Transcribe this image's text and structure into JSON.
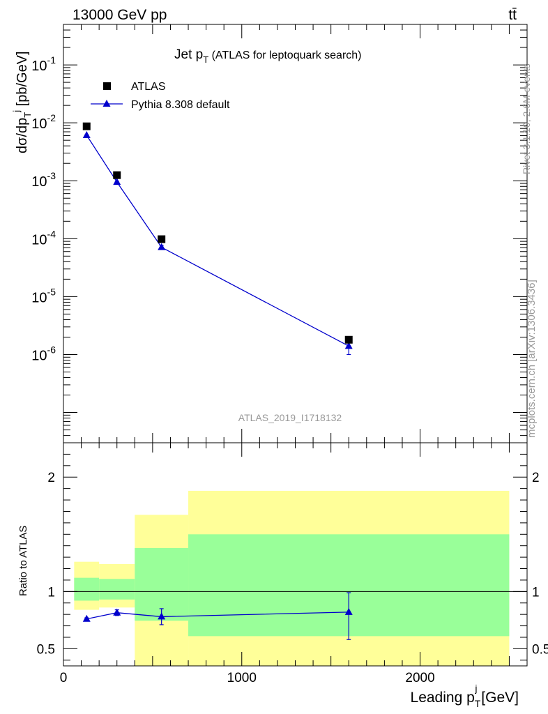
{
  "header": {
    "left_label": "13000 GeV pp",
    "right_label": "tt̄"
  },
  "side_labels": {
    "rivet": "Rivet 3.1.10,  2.6M events",
    "mcplots": "mcplots.cern.ch [arXiv:1306.3436]"
  },
  "chart_data": {
    "type": "scatter",
    "title": "Jet pT (ATLAS for leptoquark search)",
    "title_main": "Jet p",
    "title_sub": "T",
    "title_rest": " (ATLAS for leptoquark search)",
    "watermark": "ATLAS_2019_I1718132",
    "xlabel": "Leading pTj [GeV]",
    "xlabel_main": "Leading p",
    "xlabel_sub": "T",
    "xlabel_sup": "j",
    "xlabel_unit": " [GeV]",
    "ylabel": "dσ/dpTj [pb/GeV]",
    "ylabel_main": "dσ/dp",
    "ylabel_sub": "T",
    "ylabel_sup": "j",
    "ylabel_unit": " [pb/GeV]",
    "ratio_ylabel": "Ratio to ATLAS",
    "xlim": [
      0,
      2600
    ],
    "ylim": [
      3e-08,
      0.5
    ],
    "yscale": "log",
    "ratio_ylim": [
      0.35,
      2.3
    ],
    "legend_placement": "top-left",
    "x_ticks": [
      0,
      1000,
      2000
    ],
    "x_tick_labels": [
      "0",
      "1000",
      "2000"
    ],
    "y_ticks": [
      {
        "base": "10",
        "exp": "-1",
        "value": 0.1
      },
      {
        "base": "10",
        "exp": "-2",
        "value": 0.01
      },
      {
        "base": "10",
        "exp": "-3",
        "value": 0.001
      },
      {
        "base": "10",
        "exp": "-4",
        "value": 0.0001
      },
      {
        "base": "10",
        "exp": "-5",
        "value": 1e-05
      },
      {
        "base": "10",
        "exp": "-6",
        "value": 1e-06
      }
    ],
    "ratio_ticks": [
      0.5,
      1,
      2
    ],
    "ratio_tick_labels": [
      "0.5",
      "1",
      "2"
    ],
    "bins": [
      {
        "lo": 60,
        "hi": 200
      },
      {
        "lo": 200,
        "hi": 400
      },
      {
        "lo": 400,
        "hi": 700
      },
      {
        "lo": 700,
        "hi": 2500
      }
    ],
    "series": [
      {
        "name": "ATLAS",
        "color": "#000000",
        "marker": "square",
        "x": [
          130,
          300,
          550,
          1600
        ],
        "y": [
          0.0087,
          0.00125,
          9.8e-05,
          1.8e-06
        ]
      },
      {
        "name": "Pythia 8.308 default",
        "color": "#0000cc",
        "marker": "triangle",
        "x": [
          130,
          300,
          550,
          1600
        ],
        "y": [
          0.0061,
          0.00095,
          7.1e-05,
          1.4e-06
        ],
        "yerr_lo": [
          9e-05,
          2e-05,
          5.5e-06,
          4e-07
        ],
        "yerr_hi": [
          9e-05,
          2e-05,
          5.5e-06,
          4e-07
        ],
        "ratio": [
          0.76,
          0.815,
          0.78,
          0.82
        ],
        "ratio_lo": [
          0.75,
          0.79,
          0.71,
          0.58
        ],
        "ratio_hi": [
          0.77,
          0.84,
          0.85,
          0.99
        ]
      }
    ],
    "bands": {
      "inner_color": "#99ff99",
      "outer_color": "#ffff99",
      "inner": [
        {
          "lo": 0.92,
          "hi": 1.12
        },
        {
          "lo": 0.93,
          "hi": 1.11
        },
        {
          "lo": 0.745,
          "hi": 1.38
        },
        {
          "lo": 0.61,
          "hi": 1.5
        }
      ],
      "outer": [
        {
          "lo": 0.84,
          "hi": 1.26
        },
        {
          "lo": 0.86,
          "hi": 1.24
        },
        {
          "lo": 0.35,
          "hi": 1.67
        },
        {
          "lo": 0.35,
          "hi": 1.88
        }
      ]
    }
  }
}
